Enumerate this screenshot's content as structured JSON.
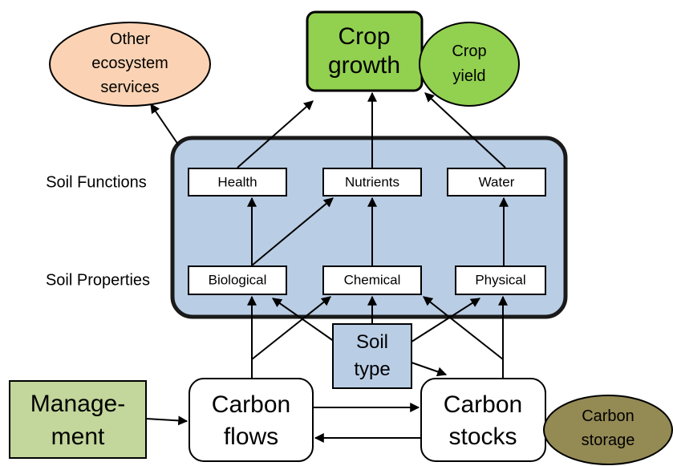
{
  "nodes": {
    "other_services": {
      "lines": [
        "Other",
        "ecosystem",
        "services"
      ]
    },
    "crop_growth": {
      "lines": [
        "Crop",
        "growth"
      ]
    },
    "crop_yield": {
      "lines": [
        "Crop",
        "yield"
      ]
    },
    "soil_functions": {
      "label": "Soil Functions"
    },
    "soil_properties": {
      "label": "Soil Properties"
    },
    "health": {
      "label": "Health"
    },
    "nutrients": {
      "label": "Nutrients"
    },
    "water": {
      "label": "Water"
    },
    "biological": {
      "label": "Biological"
    },
    "chemical": {
      "label": "Chemical"
    },
    "physical": {
      "label": "Physical"
    },
    "soil_type": {
      "lines": [
        "Soil",
        "type"
      ]
    },
    "management": {
      "lines": [
        "Manage-",
        "ment"
      ]
    },
    "carbon_flows": {
      "lines": [
        "Carbon",
        "flows"
      ]
    },
    "carbon_stocks": {
      "lines": [
        "Carbon",
        "stocks"
      ]
    },
    "carbon_storage": {
      "lines": [
        "Carbon",
        "storage"
      ]
    }
  }
}
